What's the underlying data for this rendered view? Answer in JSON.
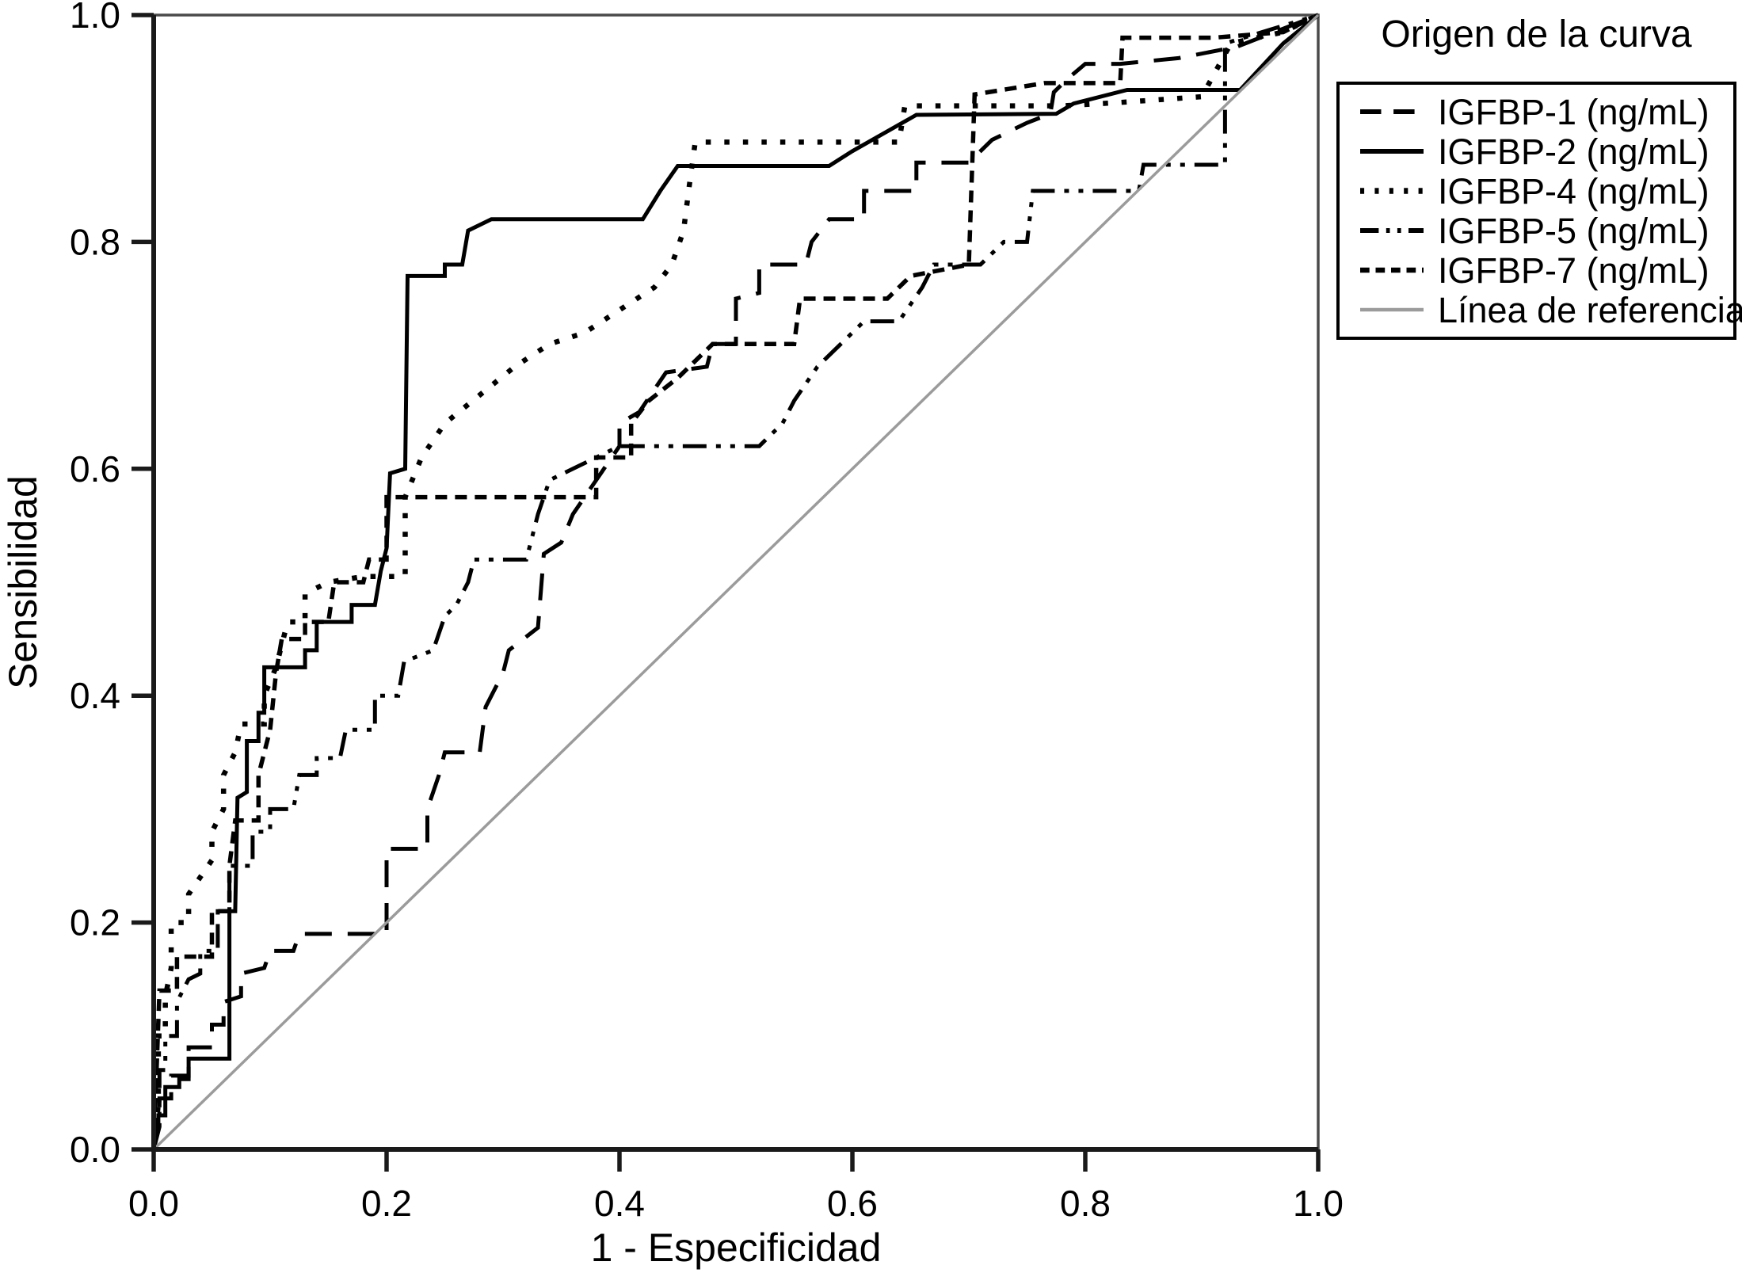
{
  "chart_data": {
    "type": "line",
    "subtype": "roc_step_curves",
    "title": "",
    "xlabel": "1 - Especificidad",
    "ylabel": "Sensibilidad",
    "xlim": [
      0,
      1
    ],
    "ylim": [
      0,
      1
    ],
    "grid": false,
    "x_ticks": [
      "0.0",
      "0.2",
      "0.4",
      "0.6",
      "0.8",
      "1.0"
    ],
    "y_ticks": [
      "0.0",
      "0.2",
      "0.4",
      "0.6",
      "0.8",
      "1.0"
    ],
    "legend": {
      "title": "Origen de la curva",
      "position": "right"
    },
    "colors": {
      "curve": "#000000",
      "reference": "#9b9b9b",
      "frame": "#4a4a4a",
      "axis": "#1a1a1a"
    },
    "series": [
      {
        "key": "igfbp-1",
        "name": "IGFBP-1 (ng/mL)",
        "style": "long-dash",
        "color": "#000000",
        "points": [
          [
            0,
            0
          ],
          [
            0.005,
            0.02
          ],
          [
            0.005,
            0.045
          ],
          [
            0.015,
            0.045
          ],
          [
            0.015,
            0.065
          ],
          [
            0.03,
            0.065
          ],
          [
            0.03,
            0.09
          ],
          [
            0.05,
            0.09
          ],
          [
            0.05,
            0.11
          ],
          [
            0.06,
            0.11
          ],
          [
            0.06,
            0.13
          ],
          [
            0.075,
            0.135
          ],
          [
            0.075,
            0.155
          ],
          [
            0.095,
            0.16
          ],
          [
            0.1,
            0.175
          ],
          [
            0.12,
            0.175
          ],
          [
            0.125,
            0.19
          ],
          [
            0.2,
            0.19
          ],
          [
            0.2,
            0.265
          ],
          [
            0.235,
            0.265
          ],
          [
            0.235,
            0.3
          ],
          [
            0.245,
            0.33
          ],
          [
            0.25,
            0.35
          ],
          [
            0.28,
            0.35
          ],
          [
            0.285,
            0.39
          ],
          [
            0.3,
            0.42
          ],
          [
            0.305,
            0.44
          ],
          [
            0.33,
            0.46
          ],
          [
            0.335,
            0.525
          ],
          [
            0.35,
            0.535
          ],
          [
            0.36,
            0.56
          ],
          [
            0.38,
            0.59
          ],
          [
            0.4,
            0.62
          ],
          [
            0.4,
            0.64
          ],
          [
            0.417,
            0.65
          ],
          [
            0.43,
            0.67
          ],
          [
            0.44,
            0.685
          ],
          [
            0.475,
            0.69
          ],
          [
            0.48,
            0.71
          ],
          [
            0.5,
            0.71
          ],
          [
            0.5,
            0.75
          ],
          [
            0.52,
            0.755
          ],
          [
            0.52,
            0.78
          ],
          [
            0.56,
            0.78
          ],
          [
            0.565,
            0.8
          ],
          [
            0.58,
            0.82
          ],
          [
            0.61,
            0.82
          ],
          [
            0.61,
            0.845
          ],
          [
            0.655,
            0.845
          ],
          [
            0.655,
            0.87
          ],
          [
            0.7,
            0.87
          ],
          [
            0.72,
            0.89
          ],
          [
            0.75,
            0.905
          ],
          [
            0.77,
            0.913
          ],
          [
            0.773,
            0.932
          ],
          [
            0.785,
            0.944
          ],
          [
            0.8,
            0.957
          ],
          [
            0.83,
            0.957
          ],
          [
            0.88,
            0.962
          ],
          [
            0.93,
            0.972
          ],
          [
            1,
            1
          ]
        ]
      },
      {
        "key": "igfbp-2",
        "name": "IGFBP-2 (ng/mL)",
        "style": "solid",
        "color": "#000000",
        "points": [
          [
            0,
            0
          ],
          [
            0,
            0.02
          ],
          [
            0.004,
            0.02
          ],
          [
            0.004,
            0.03
          ],
          [
            0.01,
            0.03
          ],
          [
            0.01,
            0.055
          ],
          [
            0.022,
            0.055
          ],
          [
            0.022,
            0.062
          ],
          [
            0.03,
            0.062
          ],
          [
            0.03,
            0.08
          ],
          [
            0.065,
            0.08
          ],
          [
            0.065,
            0.21
          ],
          [
            0.07,
            0.21
          ],
          [
            0.072,
            0.31
          ],
          [
            0.08,
            0.315
          ],
          [
            0.08,
            0.36
          ],
          [
            0.09,
            0.36
          ],
          [
            0.09,
            0.385
          ],
          [
            0.095,
            0.385
          ],
          [
            0.095,
            0.425
          ],
          [
            0.13,
            0.425
          ],
          [
            0.13,
            0.44
          ],
          [
            0.14,
            0.44
          ],
          [
            0.14,
            0.465
          ],
          [
            0.17,
            0.465
          ],
          [
            0.17,
            0.48
          ],
          [
            0.19,
            0.48
          ],
          [
            0.195,
            0.51
          ],
          [
            0.2,
            0.53
          ],
          [
            0.203,
            0.596
          ],
          [
            0.216,
            0.6
          ],
          [
            0.218,
            0.77
          ],
          [
            0.25,
            0.77
          ],
          [
            0.25,
            0.78
          ],
          [
            0.265,
            0.78
          ],
          [
            0.27,
            0.81
          ],
          [
            0.29,
            0.82
          ],
          [
            0.42,
            0.82
          ],
          [
            0.435,
            0.845
          ],
          [
            0.45,
            0.867
          ],
          [
            0.58,
            0.867
          ],
          [
            0.6,
            0.88
          ],
          [
            0.655,
            0.912
          ],
          [
            0.775,
            0.913
          ],
          [
            0.79,
            0.922
          ],
          [
            0.836,
            0.934
          ],
          [
            0.933,
            0.934
          ],
          [
            0.97,
            0.975
          ],
          [
            1,
            1
          ]
        ]
      },
      {
        "key": "igfbp-4",
        "name": "IGFBP-4 (ng/mL)",
        "style": "dotted",
        "color": "#000000",
        "points": [
          [
            0,
            0
          ],
          [
            0.004,
            0.04
          ],
          [
            0.004,
            0.1
          ],
          [
            0.01,
            0.1
          ],
          [
            0.01,
            0.135
          ],
          [
            0.015,
            0.16
          ],
          [
            0.015,
            0.2
          ],
          [
            0.03,
            0.2
          ],
          [
            0.03,
            0.225
          ],
          [
            0.04,
            0.24
          ],
          [
            0.05,
            0.255
          ],
          [
            0.05,
            0.28
          ],
          [
            0.06,
            0.3
          ],
          [
            0.06,
            0.33
          ],
          [
            0.07,
            0.35
          ],
          [
            0.075,
            0.375
          ],
          [
            0.095,
            0.375
          ],
          [
            0.095,
            0.4
          ],
          [
            0.105,
            0.425
          ],
          [
            0.11,
            0.445
          ],
          [
            0.115,
            0.465
          ],
          [
            0.13,
            0.465
          ],
          [
            0.13,
            0.49
          ],
          [
            0.15,
            0.5
          ],
          [
            0.18,
            0.505
          ],
          [
            0.216,
            0.505
          ],
          [
            0.216,
            0.575
          ],
          [
            0.23,
            0.61
          ],
          [
            0.25,
            0.64
          ],
          [
            0.28,
            0.665
          ],
          [
            0.31,
            0.69
          ],
          [
            0.34,
            0.71
          ],
          [
            0.37,
            0.72
          ],
          [
            0.4,
            0.74
          ],
          [
            0.43,
            0.76
          ],
          [
            0.445,
            0.78
          ],
          [
            0.455,
            0.81
          ],
          [
            0.46,
            0.85
          ],
          [
            0.465,
            0.888
          ],
          [
            0.64,
            0.888
          ],
          [
            0.645,
            0.92
          ],
          [
            0.78,
            0.92
          ],
          [
            0.83,
            0.923
          ],
          [
            0.9,
            0.928
          ],
          [
            0.925,
            0.975
          ],
          [
            0.97,
            0.985
          ],
          [
            1,
            1
          ]
        ]
      },
      {
        "key": "igfbp-5",
        "name": "IGFBP-5 (ng/mL)",
        "style": "dash-dot-dot",
        "color": "#000000",
        "points": [
          [
            0,
            0
          ],
          [
            0.005,
            0.03
          ],
          [
            0.005,
            0.07
          ],
          [
            0.01,
            0.07
          ],
          [
            0.01,
            0.1
          ],
          [
            0.02,
            0.1
          ],
          [
            0.02,
            0.13
          ],
          [
            0.03,
            0.15
          ],
          [
            0.04,
            0.155
          ],
          [
            0.04,
            0.175
          ],
          [
            0.055,
            0.175
          ],
          [
            0.055,
            0.21
          ],
          [
            0.065,
            0.21
          ],
          [
            0.065,
            0.25
          ],
          [
            0.085,
            0.25
          ],
          [
            0.085,
            0.28
          ],
          [
            0.1,
            0.28
          ],
          [
            0.1,
            0.3
          ],
          [
            0.12,
            0.3
          ],
          [
            0.125,
            0.33
          ],
          [
            0.14,
            0.33
          ],
          [
            0.14,
            0.345
          ],
          [
            0.16,
            0.345
          ],
          [
            0.165,
            0.37
          ],
          [
            0.19,
            0.37
          ],
          [
            0.19,
            0.4
          ],
          [
            0.21,
            0.4
          ],
          [
            0.215,
            0.43
          ],
          [
            0.24,
            0.44
          ],
          [
            0.25,
            0.47
          ],
          [
            0.26,
            0.48
          ],
          [
            0.27,
            0.5
          ],
          [
            0.275,
            0.52
          ],
          [
            0.32,
            0.52
          ],
          [
            0.33,
            0.56
          ],
          [
            0.34,
            0.59
          ],
          [
            0.36,
            0.6
          ],
          [
            0.4,
            0.62
          ],
          [
            0.52,
            0.62
          ],
          [
            0.54,
            0.64
          ],
          [
            0.55,
            0.66
          ],
          [
            0.57,
            0.69
          ],
          [
            0.59,
            0.71
          ],
          [
            0.61,
            0.73
          ],
          [
            0.64,
            0.73
          ],
          [
            0.66,
            0.76
          ],
          [
            0.67,
            0.78
          ],
          [
            0.71,
            0.78
          ],
          [
            0.73,
            0.8
          ],
          [
            0.75,
            0.8
          ],
          [
            0.755,
            0.845
          ],
          [
            0.846,
            0.845
          ],
          [
            0.85,
            0.868
          ],
          [
            0.92,
            0.868
          ],
          [
            0.92,
            0.975
          ],
          [
            1,
            1
          ]
        ]
      },
      {
        "key": "igfbp-7",
        "name": "IGFBP-7 (ng/mL)",
        "style": "dense-dash",
        "color": "#000000",
        "points": [
          [
            0,
            0
          ],
          [
            0.005,
            0.14
          ],
          [
            0.02,
            0.14
          ],
          [
            0.02,
            0.17
          ],
          [
            0.05,
            0.17
          ],
          [
            0.05,
            0.21
          ],
          [
            0.065,
            0.21
          ],
          [
            0.065,
            0.25
          ],
          [
            0.07,
            0.29
          ],
          [
            0.09,
            0.29
          ],
          [
            0.09,
            0.33
          ],
          [
            0.1,
            0.37
          ],
          [
            0.105,
            0.42
          ],
          [
            0.11,
            0.45
          ],
          [
            0.13,
            0.45
          ],
          [
            0.13,
            0.465
          ],
          [
            0.15,
            0.465
          ],
          [
            0.155,
            0.5
          ],
          [
            0.18,
            0.5
          ],
          [
            0.185,
            0.52
          ],
          [
            0.2,
            0.52
          ],
          [
            0.2,
            0.575
          ],
          [
            0.38,
            0.575
          ],
          [
            0.38,
            0.61
          ],
          [
            0.41,
            0.61
          ],
          [
            0.41,
            0.64
          ],
          [
            0.425,
            0.66
          ],
          [
            0.45,
            0.68
          ],
          [
            0.48,
            0.71
          ],
          [
            0.55,
            0.71
          ],
          [
            0.555,
            0.75
          ],
          [
            0.63,
            0.75
          ],
          [
            0.65,
            0.77
          ],
          [
            0.7,
            0.78
          ],
          [
            0.705,
            0.93
          ],
          [
            0.765,
            0.94
          ],
          [
            0.83,
            0.94
          ],
          [
            0.832,
            0.98
          ],
          [
            0.91,
            0.98
          ],
          [
            0.97,
            0.985
          ],
          [
            1,
            1
          ]
        ]
      },
      {
        "key": "reference",
        "name": "Línea de referencia",
        "style": "reference",
        "color": "#9b9b9b",
        "points": [
          [
            0,
            0
          ],
          [
            1,
            1
          ]
        ]
      }
    ]
  }
}
